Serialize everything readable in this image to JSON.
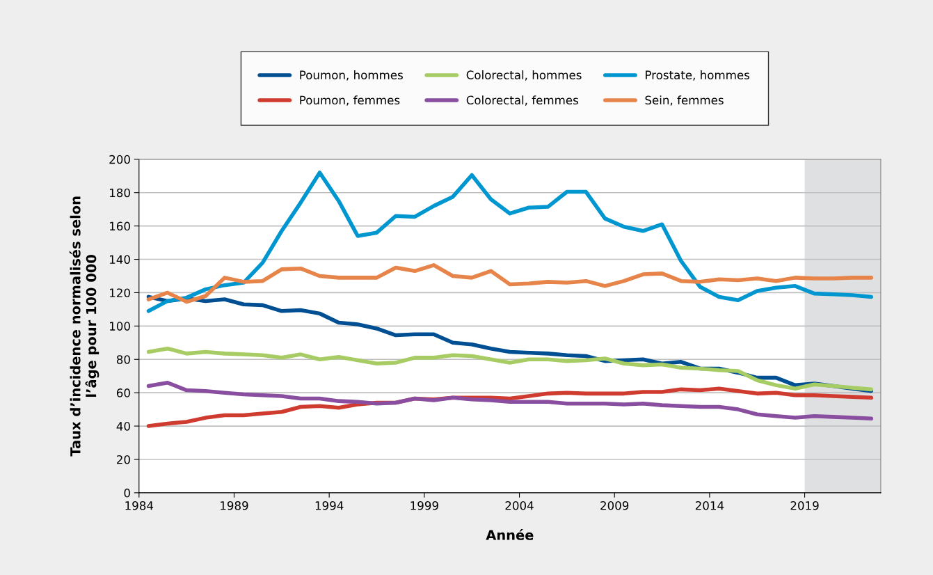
{
  "chart_data": {
    "type": "line",
    "xlabel": "Année",
    "ylabel": "Taux d’incidence normalisés selon\nl’âge pour 100 000",
    "x": [
      1984.5,
      1985.5,
      1986.5,
      1987.5,
      1988.5,
      1989.5,
      1990.5,
      1991.5,
      1992.5,
      1993.5,
      1994.5,
      1995.5,
      1996.5,
      1997.5,
      1998.5,
      1999.5,
      2000.5,
      2001.5,
      2002.5,
      2003.5,
      2004.5,
      2005.5,
      2006.5,
      2007.5,
      2008.5,
      2009.5,
      2010.5,
      2011.5,
      2012.5,
      2013.5,
      2014.5,
      2015.5,
      2016.5,
      2017.5,
      2018.5,
      2019.5,
      2020.5,
      2021.5,
      2022.5
    ],
    "series": [
      {
        "name": "Poumon, hommes",
        "color": "#004f93",
        "values": [
          117.5,
          115,
          116.5,
          115,
          116,
          113,
          112.5,
          109,
          109.5,
          107.5,
          102,
          101,
          98.5,
          94.5,
          95,
          95,
          90,
          89,
          86.5,
          84.5,
          84,
          83.5,
          82.5,
          82,
          79,
          79.5,
          80,
          77.5,
          78.5,
          74.5,
          74.5,
          72,
          69,
          69,
          64.5,
          65.5,
          64,
          62.5,
          61
        ]
      },
      {
        "name": "Poumon, femmes",
        "color": "#cf3b2f",
        "values": [
          40,
          41.5,
          42.5,
          45,
          46.5,
          46.5,
          47.5,
          48.5,
          51.5,
          52,
          51,
          53,
          54,
          54,
          56.5,
          56,
          57,
          57,
          57,
          56.5,
          58,
          59.5,
          60,
          59.5,
          59.5,
          59.5,
          60.5,
          60.5,
          62,
          61.5,
          62.5,
          61,
          59.5,
          60,
          58.5,
          58.5,
          58,
          57.5,
          57
        ]
      },
      {
        "name": "Colorectal, hommes",
        "color": "#a8cc64",
        "values": [
          84.5,
          86.5,
          83.5,
          84.5,
          83.5,
          83,
          82.5,
          81,
          83,
          80,
          81.5,
          79.5,
          77.5,
          78,
          81,
          81,
          82.5,
          82,
          80,
          78,
          80,
          80,
          79,
          79.5,
          80.5,
          77.5,
          76.5,
          77,
          75,
          74.5,
          73.5,
          73,
          67.5,
          64.5,
          62.5,
          65,
          64,
          63,
          62
        ]
      },
      {
        "name": "Colorectal, femmes",
        "color": "#8a4ea0",
        "values": [
          64,
          66,
          61.5,
          61,
          60,
          59,
          58.5,
          58,
          56.5,
          56.5,
          55,
          54.5,
          53.5,
          54,
          56.5,
          55.5,
          57,
          56,
          55.5,
          54.5,
          54.5,
          54.5,
          53.5,
          53.5,
          53.5,
          53,
          53.5,
          52.5,
          52,
          51.5,
          51.5,
          50,
          47,
          46,
          45,
          46,
          45.5,
          45,
          44.5
        ]
      },
      {
        "name": "Prostate, hommes",
        "color": "#0096cf",
        "values": [
          109,
          115,
          117,
          122,
          124.5,
          126,
          138,
          157,
          174,
          192,
          175,
          154,
          156,
          166,
          165.5,
          172,
          177.5,
          190.5,
          176,
          167.5,
          171,
          171.5,
          180.5,
          180.5,
          164.5,
          159.5,
          157,
          161,
          139,
          123.5,
          117.5,
          115.5,
          121,
          123,
          124,
          119.5,
          119,
          118.5,
          117.5
        ]
      },
      {
        "name": "Sein, femmes",
        "color": "#e6844a",
        "values": [
          116,
          120,
          114.5,
          118,
          129,
          126.5,
          127,
          134,
          134.5,
          130,
          129,
          129,
          129,
          135,
          133,
          136.5,
          130,
          129,
          133,
          125,
          125.5,
          126.5,
          126,
          127,
          124,
          127,
          131,
          131.5,
          127,
          126.5,
          128,
          127.5,
          128.5,
          127,
          129,
          128.5,
          128.5,
          129,
          129
        ]
      }
    ],
    "bands": [
      {
        "axis": "x",
        "from": 2019,
        "to": 2023,
        "color": "#dfe0e2"
      }
    ],
    "xlim": [
      1984,
      2023
    ],
    "xticks": [
      1984,
      1989,
      1994,
      1999,
      2004,
      2009,
      2014,
      2019
    ],
    "ylim": [
      0,
      200
    ],
    "yticks": [
      0,
      20,
      40,
      60,
      80,
      100,
      120,
      140,
      160,
      180,
      200
    ],
    "grid": "y",
    "legend": "top",
    "marker": "none",
    "line_style": "solid"
  }
}
